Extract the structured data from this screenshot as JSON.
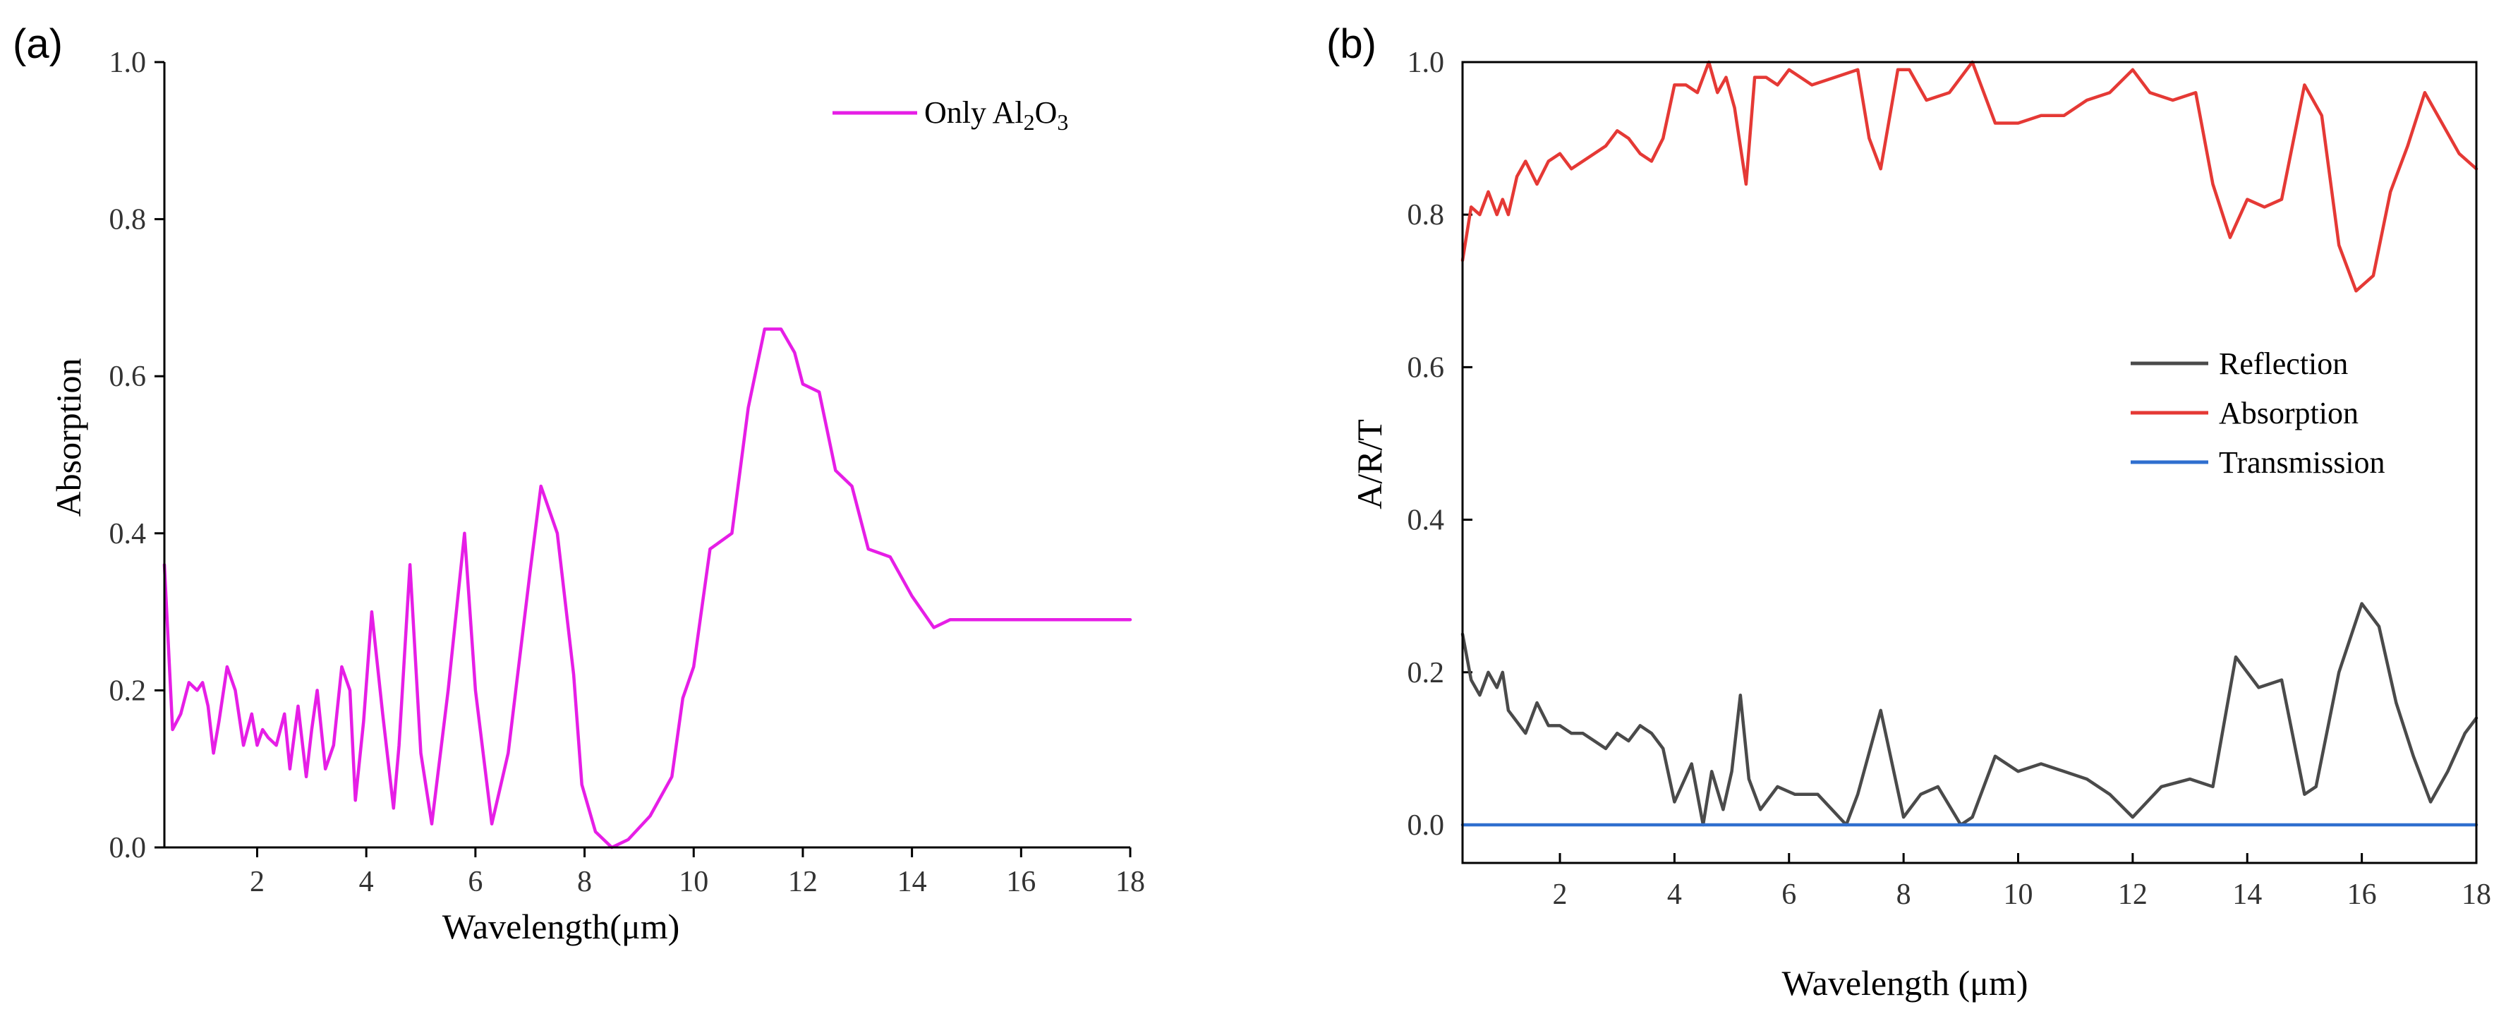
{
  "chart_data": [
    {
      "panel": "(a)",
      "type": "line",
      "xlabel": "Wavelength(μm)",
      "ylabel": "Absorption",
      "xlim": [
        0.3,
        18
      ],
      "ylim": [
        0,
        1.0
      ],
      "xticks": [
        2,
        4,
        6,
        8,
        10,
        12,
        14,
        16,
        18
      ],
      "yticks": [
        0.0,
        0.2,
        0.4,
        0.6,
        0.8,
        1.0
      ],
      "ytick_labels": [
        "0.0",
        "0.2",
        "0.4",
        "0.6",
        "0.8",
        "1.0"
      ],
      "legend_position": "top-right",
      "series": [
        {
          "name": "Only Al",
          "legend_sub1": "2",
          "legend_mid": "O",
          "legend_sub2": "3",
          "color": "#e61ee6",
          "x": [
            0.3,
            0.45,
            0.6,
            0.75,
            0.9,
            1.0,
            1.1,
            1.2,
            1.3,
            1.45,
            1.6,
            1.75,
            1.9,
            2.0,
            2.1,
            2.2,
            2.35,
            2.5,
            2.6,
            2.75,
            2.9,
            3.0,
            3.1,
            3.25,
            3.4,
            3.55,
            3.7,
            3.8,
            3.95,
            4.1,
            4.3,
            4.5,
            4.6,
            4.8,
            5.0,
            5.2,
            5.5,
            5.8,
            6.0,
            6.3,
            6.6,
            7.0,
            7.2,
            7.5,
            7.8,
            7.95,
            8.2,
            8.5,
            8.8,
            9.2,
            9.6,
            9.8,
            10.0,
            10.3,
            10.7,
            11.0,
            11.3,
            11.6,
            11.85,
            12.0,
            12.3,
            12.6,
            12.9,
            13.2,
            13.6,
            14.0,
            14.4,
            14.7,
            15.0,
            15.3,
            15.6,
            15.9,
            16.2,
            16.5,
            16.8,
            17.0,
            17.3,
            17.5,
            17.7,
            18.0
          ],
          "y": [
            0.36,
            0.15,
            0.17,
            0.21,
            0.2,
            0.21,
            0.18,
            0.12,
            0.16,
            0.23,
            0.2,
            0.13,
            0.17,
            0.13,
            0.15,
            0.14,
            0.13,
            0.17,
            0.1,
            0.18,
            0.09,
            0.15,
            0.2,
            0.1,
            0.13,
            0.23,
            0.2,
            0.06,
            0.16,
            0.3,
            0.17,
            0.05,
            0.13,
            0.36,
            0.12,
            0.03,
            0.2,
            0.4,
            0.2,
            0.03,
            0.12,
            0.35,
            0.46,
            0.4,
            0.22,
            0.08,
            0.02,
            0.0,
            0.01,
            0.04,
            0.09,
            0.19,
            0.23,
            0.38,
            0.4,
            0.56,
            0.66,
            0.66,
            0.63,
            0.59,
            0.58,
            0.48,
            0.46,
            0.38,
            0.37,
            0.32,
            0.28,
            0.29,
            0.29,
            0.29,
            0.29,
            0.29,
            0.29,
            0.29,
            0.29,
            0.29,
            0.29,
            0.29,
            0.29,
            0.29
          ]
        }
      ]
    },
    {
      "panel": "(b)",
      "type": "line",
      "xlabel": "Wavelength (μm)",
      "ylabel": "A/R/T",
      "xlim": [
        0.3,
        18
      ],
      "ylim": [
        -0.05,
        1.0
      ],
      "xticks": [
        2,
        4,
        6,
        8,
        10,
        12,
        14,
        16,
        18
      ],
      "yticks": [
        0.0,
        0.2,
        0.4,
        0.6,
        0.8,
        1.0
      ],
      "ytick_labels": [
        "0.0",
        "0.2",
        "0.4",
        "0.6",
        "0.8",
        "1.0"
      ],
      "legend_position": "center-right",
      "series": [
        {
          "name": "Reflection",
          "color": "#4a4a4a",
          "x": [
            0.3,
            0.45,
            0.6,
            0.75,
            0.9,
            1.0,
            1.1,
            1.2,
            1.4,
            1.6,
            1.8,
            2.0,
            2.2,
            2.4,
            2.6,
            2.8,
            3.0,
            3.2,
            3.4,
            3.6,
            3.8,
            4.0,
            4.3,
            4.5,
            4.65,
            4.85,
            5.0,
            5.15,
            5.3,
            5.5,
            5.8,
            6.1,
            6.5,
            7.0,
            7.2,
            7.6,
            8.0,
            8.3,
            8.6,
            9.0,
            9.2,
            9.6,
            10.0,
            10.4,
            10.8,
            11.2,
            11.6,
            12.0,
            12.5,
            13.0,
            13.4,
            13.8,
            14.2,
            14.6,
            15.0,
            15.2,
            15.6,
            16.0,
            16.3,
            16.6,
            16.9,
            17.2,
            17.5,
            17.8,
            18.0
          ],
          "y": [
            0.25,
            0.19,
            0.17,
            0.2,
            0.18,
            0.2,
            0.15,
            0.14,
            0.12,
            0.16,
            0.13,
            0.13,
            0.12,
            0.12,
            0.11,
            0.1,
            0.12,
            0.11,
            0.13,
            0.12,
            0.1,
            0.03,
            0.08,
            0.0,
            0.07,
            0.02,
            0.07,
            0.17,
            0.06,
            0.02,
            0.05,
            0.04,
            0.04,
            0.0,
            0.04,
            0.15,
            0.01,
            0.04,
            0.05,
            0.0,
            0.01,
            0.09,
            0.07,
            0.08,
            0.07,
            0.06,
            0.04,
            0.01,
            0.05,
            0.06,
            0.05,
            0.22,
            0.18,
            0.19,
            0.04,
            0.05,
            0.2,
            0.29,
            0.26,
            0.16,
            0.09,
            0.03,
            0.07,
            0.12,
            0.14
          ]
        },
        {
          "name": "Absorption",
          "color": "#e53935",
          "x": [
            0.3,
            0.45,
            0.6,
            0.75,
            0.9,
            1.0,
            1.1,
            1.25,
            1.4,
            1.6,
            1.8,
            2.0,
            2.2,
            2.4,
            2.6,
            2.8,
            3.0,
            3.2,
            3.4,
            3.6,
            3.8,
            4.0,
            4.2,
            4.4,
            4.6,
            4.75,
            4.9,
            5.05,
            5.25,
            5.4,
            5.6,
            5.8,
            6.0,
            6.4,
            6.8,
            7.2,
            7.4,
            7.6,
            7.9,
            8.1,
            8.4,
            8.8,
            9.2,
            9.6,
            10.0,
            10.4,
            10.8,
            11.2,
            11.6,
            12.0,
            12.3,
            12.7,
            13.1,
            13.4,
            13.7,
            14.0,
            14.3,
            14.6,
            15.0,
            15.3,
            15.6,
            15.9,
            16.2,
            16.5,
            16.8,
            17.1,
            17.4,
            17.7,
            18.0
          ],
          "y": [
            0.74,
            0.81,
            0.8,
            0.83,
            0.8,
            0.82,
            0.8,
            0.85,
            0.87,
            0.84,
            0.87,
            0.88,
            0.86,
            0.87,
            0.88,
            0.89,
            0.91,
            0.9,
            0.88,
            0.87,
            0.9,
            0.97,
            0.97,
            0.96,
            1.0,
            0.96,
            0.98,
            0.94,
            0.84,
            0.98,
            0.98,
            0.97,
            0.99,
            0.97,
            0.98,
            0.99,
            0.9,
            0.86,
            0.99,
            0.99,
            0.95,
            0.96,
            1.0,
            0.92,
            0.92,
            0.93,
            0.93,
            0.95,
            0.96,
            0.99,
            0.96,
            0.95,
            0.96,
            0.84,
            0.77,
            0.82,
            0.81,
            0.82,
            0.97,
            0.93,
            0.76,
            0.7,
            0.72,
            0.83,
            0.89,
            0.96,
            0.92,
            0.88,
            0.86
          ]
        },
        {
          "name": "Transmission",
          "color": "#2f6fcf",
          "x": [
            0.3,
            18
          ],
          "y": [
            0.0,
            0.0
          ]
        }
      ]
    }
  ]
}
